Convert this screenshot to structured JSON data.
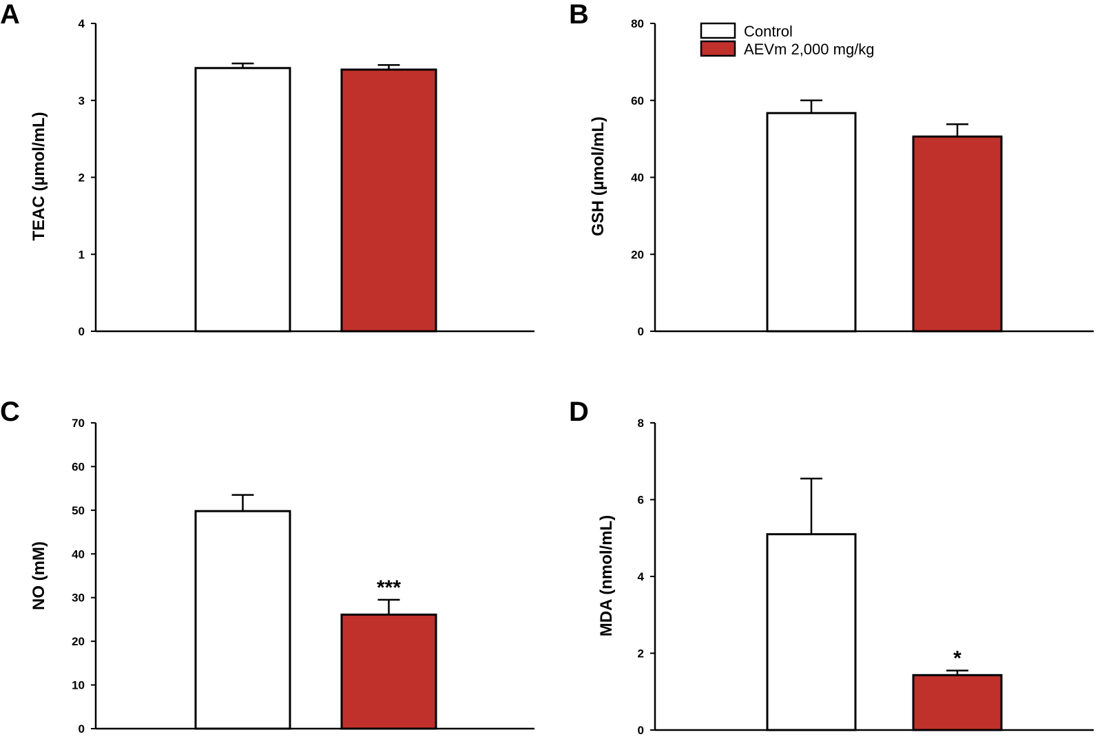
{
  "legend": {
    "items": [
      {
        "label": "Control",
        "color": "#ffffff"
      },
      {
        "label": "AEVm 2,000 mg/kg",
        "color": "#c0312b"
      }
    ]
  },
  "chart_data": [
    {
      "panel": "A",
      "type": "bar",
      "categories": [
        "Control",
        "AEVm 2,000 mg/kg"
      ],
      "values": [
        3.42,
        3.4
      ],
      "errors": [
        0.06,
        0.06
      ],
      "colors": [
        "#ffffff",
        "#c0312b"
      ],
      "significance": [
        "",
        ""
      ],
      "ylabel": "TEAC (µmol/mL)",
      "ylim": [
        0,
        4
      ],
      "yticks": [
        0,
        1,
        2,
        3,
        4
      ]
    },
    {
      "panel": "B",
      "type": "bar",
      "categories": [
        "Control",
        "AEVm 2,000 mg/kg"
      ],
      "values": [
        56.7,
        50.6
      ],
      "errors": [
        3.3,
        3.2
      ],
      "colors": [
        "#ffffff",
        "#c0312b"
      ],
      "significance": [
        "",
        ""
      ],
      "ylabel": "GSH (µmol/mL)",
      "ylim": [
        0,
        80
      ],
      "yticks": [
        0,
        20,
        40,
        60,
        80
      ]
    },
    {
      "panel": "C",
      "type": "bar",
      "categories": [
        "Control",
        "AEVm 2,000 mg/kg"
      ],
      "values": [
        49.8,
        26.1
      ],
      "errors": [
        3.7,
        3.4
      ],
      "colors": [
        "#ffffff",
        "#c0312b"
      ],
      "significance": [
        "",
        "***"
      ],
      "ylabel": "NO (mM)",
      "ylim": [
        0,
        70
      ],
      "yticks": [
        0,
        10,
        20,
        30,
        40,
        50,
        60,
        70
      ]
    },
    {
      "panel": "D",
      "type": "bar",
      "categories": [
        "Control",
        "AEVm 2,000 mg/kg"
      ],
      "values": [
        5.1,
        1.43
      ],
      "errors": [
        1.45,
        0.12
      ],
      "colors": [
        "#ffffff",
        "#c0312b"
      ],
      "significance": [
        "",
        "*"
      ],
      "ylabel": "MDA (nmol/mL)",
      "ylim": [
        0,
        8
      ],
      "yticks": [
        0,
        2,
        4,
        6,
        8
      ]
    }
  ]
}
